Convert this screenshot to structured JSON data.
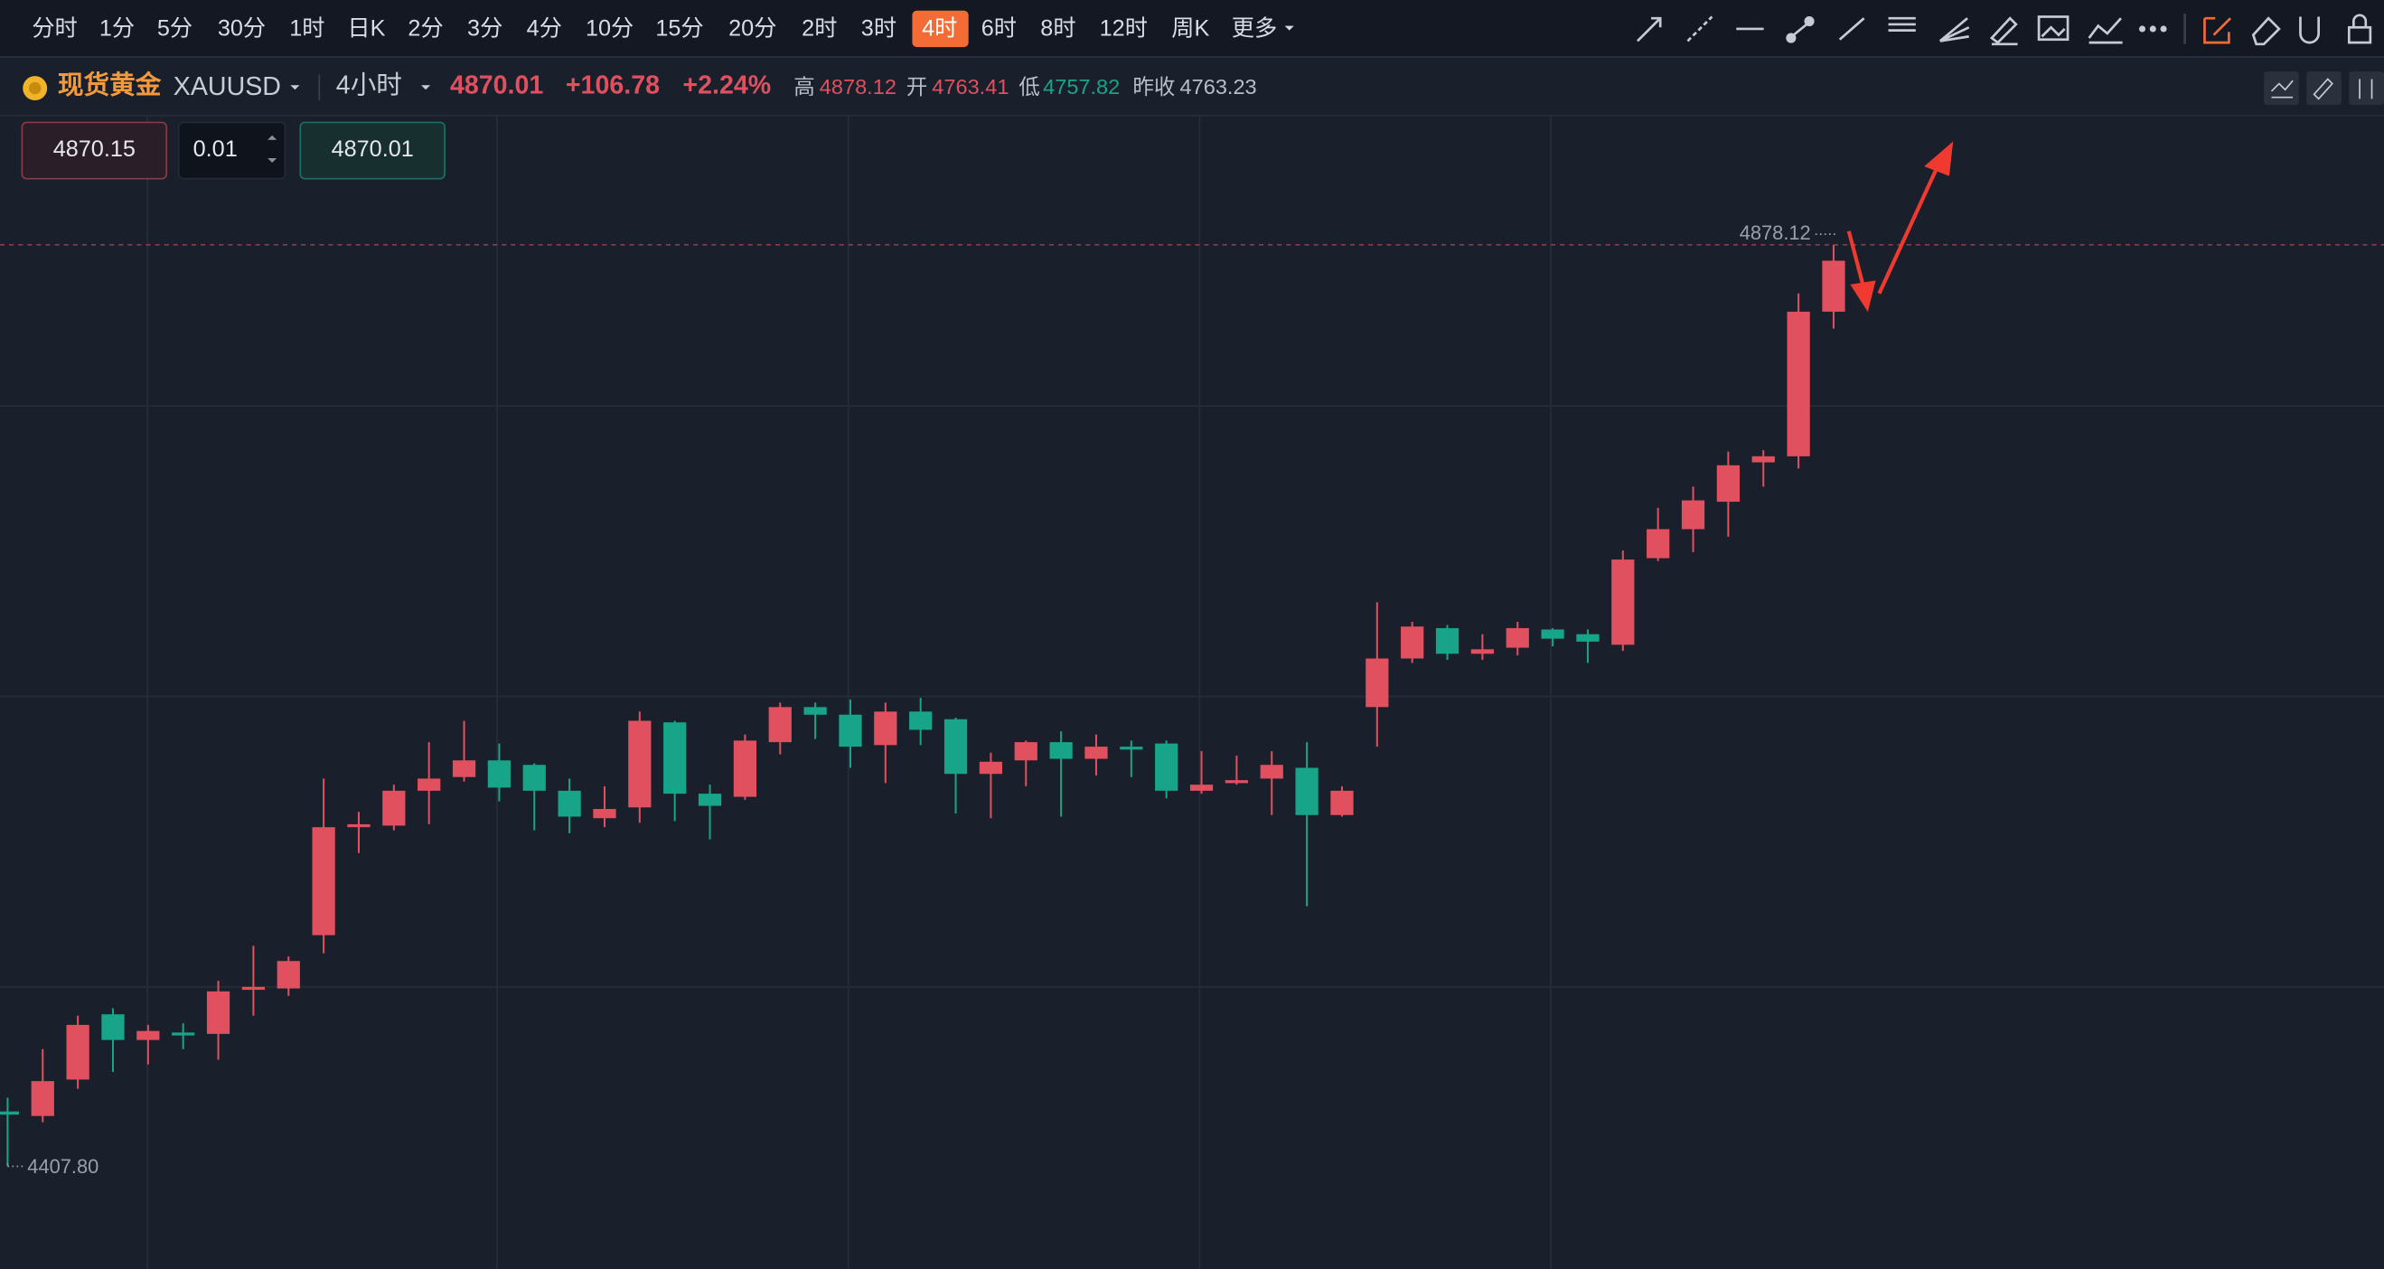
{
  "toolbar": {
    "timeframes": [
      {
        "label": "分时"
      },
      {
        "label": "1分"
      },
      {
        "label": "5分"
      },
      {
        "label": "30分"
      },
      {
        "label": "1时"
      },
      {
        "label": "日K"
      },
      {
        "label": "2分"
      },
      {
        "label": "3分"
      },
      {
        "label": "4分"
      },
      {
        "label": "10分"
      },
      {
        "label": "15分"
      },
      {
        "label": "20分"
      },
      {
        "label": "2时"
      },
      {
        "label": "3时"
      },
      {
        "label": "4时",
        "active": true
      },
      {
        "label": "6时"
      },
      {
        "label": "8时"
      },
      {
        "label": "12时"
      },
      {
        "label": "周K"
      },
      {
        "label": "更多"
      }
    ]
  },
  "symbol": {
    "name": "现货黄金",
    "code": "XAUUSD",
    "period": "4小时",
    "price": "4870.01",
    "change": "+106.78",
    "change_pct": "+2.24%",
    "stats": [
      {
        "label": "高",
        "value": "4878.12",
        "color": "#e0505f"
      },
      {
        "label": "开",
        "value": "4763.41",
        "color": "#e0505f"
      },
      {
        "label": "低",
        "value": "4757.82",
        "color": "#17a488"
      },
      {
        "label": "昨收",
        "value": "4763.23",
        "color": "#b8bec8"
      }
    ]
  },
  "order": {
    "sell": "4870.15",
    "quantity": "0.01",
    "buy": "4870.01"
  },
  "chart_data": {
    "type": "candlestick",
    "up_color": "#e0505f",
    "down_color": "#17a488",
    "open": [
      4435.8,
      4433.5,
      4452.1,
      4485.4,
      4472.3,
      4476.1,
      4475.4,
      4497.9,
      4498.6,
      4525.8,
      4580.9,
      4581.7,
      4599.5,
      4606.5,
      4615.0,
      4612.7,
      4599.5,
      4585.5,
      4591.0,
      4634.4,
      4598.0,
      4596.4,
      4624.3,
      4642.2,
      4638.3,
      4622.8,
      4639.9,
      4636.0,
      4608.1,
      4615.0,
      4624.3,
      4615.8,
      4622.0,
      4623.6,
      4599.5,
      4603.4,
      4605.7,
      4611.2,
      4587.1,
      4642.2,
      4667.0,
      4682.5,
      4669.4,
      4672.5,
      4681.8,
      4679.4,
      4674.0,
      4718.2,
      4733.0,
      4747.0,
      4767.1,
      4770.2,
      4844.0
    ],
    "high": [
      4442.8,
      4467.6,
      4484.7,
      4488.5,
      4480.0,
      4480.8,
      4502.5,
      4520.4,
      4514.9,
      4605.7,
      4588.7,
      4602.6,
      4624.3,
      4635.2,
      4623.6,
      4613.5,
      4605.7,
      4601.8,
      4639.9,
      4635.2,
      4602.6,
      4628.2,
      4644.5,
      4644.5,
      4646.1,
      4644.5,
      4646.9,
      4636.8,
      4618.9,
      4625.1,
      4629.8,
      4628.2,
      4625.1,
      4625.1,
      4619.7,
      4617.4,
      4619.7,
      4624.3,
      4601.8,
      4695.7,
      4685.7,
      4684.1,
      4679.4,
      4685.7,
      4682.5,
      4681.8,
      4722.1,
      4743.9,
      4754.7,
      4772.6,
      4773.3,
      4853.3,
      4878.12
    ],
    "low": [
      4407.8,
      4430.3,
      4447.4,
      4456.0,
      4459.8,
      4467.6,
      4462.2,
      4484.7,
      4494.8,
      4516.5,
      4567.7,
      4579.3,
      4582.4,
      4604.2,
      4594.1,
      4579.3,
      4577.8,
      4580.9,
      4583.2,
      4584.0,
      4574.7,
      4594.9,
      4618.1,
      4625.9,
      4611.2,
      4603.4,
      4622.8,
      4587.9,
      4585.5,
      4601.8,
      4586.3,
      4607.3,
      4606.5,
      4595.6,
      4598.0,
      4602.6,
      4587.1,
      4540.5,
      4586.3,
      4622.0,
      4664.7,
      4666.3,
      4666.3,
      4668.6,
      4673.2,
      4664.7,
      4670.9,
      4716.7,
      4721.3,
      4729.1,
      4754.7,
      4764.0,
      4835.4
    ],
    "close": [
      4434.2,
      4451.3,
      4480.0,
      4472.3,
      4476.9,
      4474.6,
      4497.1,
      4499.4,
      4512.6,
      4580.9,
      4582.4,
      4599.5,
      4605.7,
      4615.0,
      4601.1,
      4599.5,
      4586.3,
      4590.2,
      4635.2,
      4598.0,
      4591.8,
      4625.1,
      4642.2,
      4638.3,
      4622.0,
      4639.9,
      4630.6,
      4608.1,
      4614.3,
      4624.3,
      4615.8,
      4622.0,
      4620.5,
      4599.5,
      4602.6,
      4604.9,
      4612.7,
      4587.1,
      4599.5,
      4667.0,
      4683.3,
      4669.4,
      4671.7,
      4682.5,
      4677.1,
      4675.6,
      4717.5,
      4733.0,
      4747.7,
      4765.6,
      4770.2,
      4844.0,
      4870.01
    ],
    "max_marker": 4878.12,
    "min_marker": {
      "value": 4407.8,
      "label": "4407.80"
    }
  }
}
